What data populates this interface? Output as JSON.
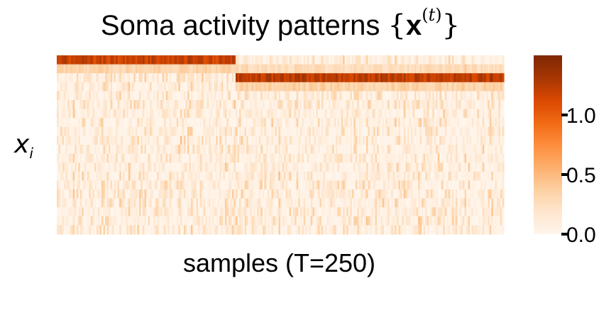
{
  "chart_data": {
    "type": "heatmap",
    "title_text": "Soma activity patterns ",
    "title_symbol": "x",
    "title_superscript": "t",
    "ylabel": "x",
    "ylabel_subscript": "i",
    "xlabel": "samples (T=250)",
    "samples": 250,
    "rows": 20,
    "segments": [
      {
        "sample_start": 0,
        "sample_end": 100,
        "active_row": 0,
        "peak_value": 1.2
      },
      {
        "sample_start": 100,
        "sample_end": 250,
        "active_row": 2,
        "peak_value": 1.25
      }
    ],
    "background_range": [
      0.0,
      0.4
    ],
    "colorbar": {
      "range": [
        0.0,
        1.5
      ],
      "ticks": [
        0.0,
        0.5,
        1.0
      ],
      "tick_labels": [
        "0.0",
        "0.5",
        "1.0"
      ],
      "colormap": [
        "#fff5eb",
        "#fee6ce",
        "#fdd0a2",
        "#fdae6b",
        "#fd8d3c",
        "#f16913",
        "#d94801",
        "#a63603",
        "#7f2704"
      ]
    }
  }
}
